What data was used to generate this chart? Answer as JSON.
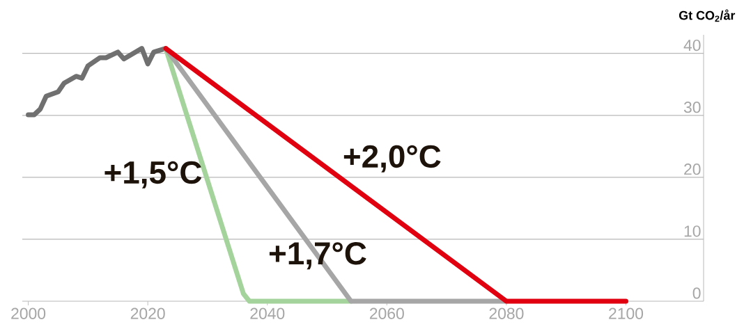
{
  "chart_data": {
    "type": "line",
    "ylabel": "Gt CO$_{2}$/år",
    "xlim": [
      1999,
      2113
    ],
    "ylim": [
      0,
      43
    ],
    "xticks": [
      2000,
      2020,
      2040,
      2060,
      2080,
      2100
    ],
    "yticks": [
      0,
      10,
      20,
      30,
      40
    ],
    "grid": "y",
    "series": [
      {
        "color": "#707070",
        "x": [
          2000,
          2001,
          2002,
          2003,
          2005,
          2006,
          2008,
          2009,
          2010,
          2012,
          2013,
          2015,
          2016,
          2019,
          2020,
          2021,
          2023
        ],
        "values": [
          30.1,
          30.1,
          31,
          33.1,
          33.8,
          35.2,
          36.3,
          36,
          38,
          39.3,
          39.3,
          40.2,
          39.1,
          40.8,
          38.3,
          40.2,
          40.8
        ]
      },
      {
        "name": "+1,5°C",
        "color": "#a5d39c",
        "x": [
          2023,
          2036,
          2037,
          2054
        ],
        "values": [
          40.8,
          1.2,
          0,
          0
        ]
      },
      {
        "name": "+1,7°C",
        "color": "#a6a6a6",
        "x": [
          2023,
          2054,
          2080
        ],
        "values": [
          40.8,
          0,
          0
        ]
      },
      {
        "name": "+2,0°C",
        "color": "#e0000f",
        "x": [
          2023,
          2080,
          2100
        ],
        "values": [
          40.8,
          0,
          0
        ]
      }
    ]
  }
}
